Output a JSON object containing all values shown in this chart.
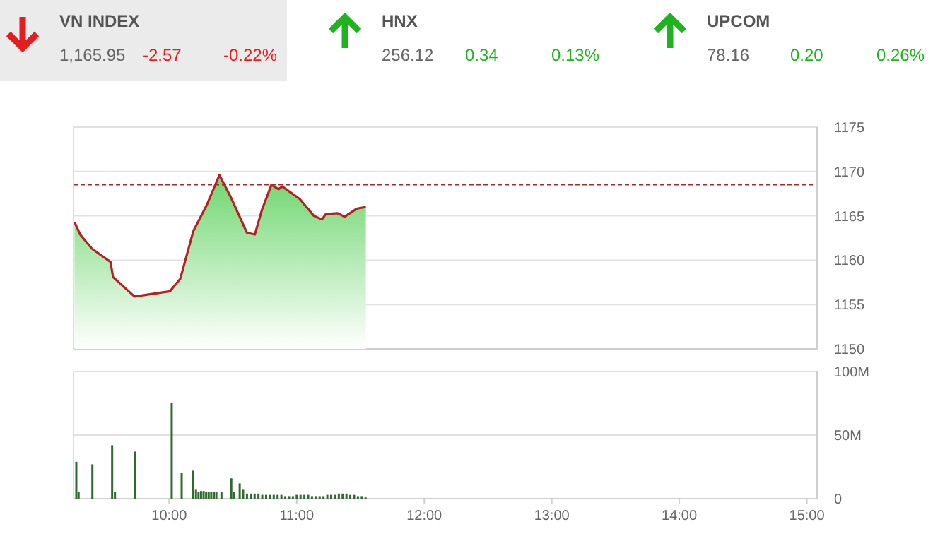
{
  "chart_data": [
    {
      "type": "other",
      "annotations": [
        "VN INDEX",
        "1,165.95",
        "-2.57",
        "-0.22%",
        "HNX",
        "256.12",
        "0.34",
        "0.13%",
        "UPCOM",
        "78.16",
        "0.20",
        "0.26%"
      ]
    },
    {
      "type": "area",
      "x": [
        9.258,
        9.302,
        9.394,
        9.54,
        9.56,
        9.728,
        10.006,
        10.087,
        10.19,
        10.294,
        10.394,
        10.487,
        10.609,
        10.672,
        10.728,
        10.802,
        10.857,
        10.887,
        11.024,
        11.135,
        11.198,
        11.228,
        11.32,
        11.376,
        11.469,
        11.542
      ],
      "series": [
        {
          "color": "#b22222",
          "values": [
            1164.3,
            1162.9,
            1161.3,
            1159.8,
            1158.1,
            1155.9,
            1156.5,
            1157.9,
            1163.3,
            1166.2,
            1169.6,
            1167.0,
            1163.1,
            1162.9,
            1165.7,
            1168.5,
            1168.0,
            1168.3,
            1166.9,
            1165.0,
            1164.6,
            1165.2,
            1165.3,
            1164.9,
            1165.8,
            1166.0
          ]
        }
      ],
      "xlim": [
        9.25,
        15.08
      ],
      "ylim": [
        1150,
        1175
      ],
      "yticks": [
        1150,
        1155,
        1160,
        1165,
        1170,
        1175
      ],
      "grid": "y",
      "tick_labels": "y",
      "ref_lines": [
        {
          "axis": "y",
          "value": 1168.52,
          "color": "#a52a2a",
          "line_style": "dashed"
        }
      ]
    },
    {
      "type": "bar",
      "x": [
        9.272,
        9.29,
        9.398,
        9.553,
        9.575,
        9.731,
        10.02,
        10.098,
        10.187,
        10.21,
        10.23,
        10.25,
        10.27,
        10.29,
        10.31,
        10.33,
        10.35,
        10.37,
        10.41,
        10.487,
        10.51,
        10.553,
        10.58,
        10.61,
        10.64,
        10.67,
        10.7,
        10.73,
        10.76,
        10.79,
        10.82,
        10.85,
        10.88,
        10.91,
        10.94,
        10.97,
        11.0,
        11.03,
        11.06,
        11.09,
        11.12,
        11.15,
        11.18,
        11.21,
        11.24,
        11.27,
        11.3,
        11.33,
        11.36,
        11.39,
        11.42,
        11.45,
        11.48,
        11.51,
        11.54
      ],
      "series": [
        {
          "color": "#2e6b2e",
          "values": [
            29,
            5,
            27,
            42,
            5,
            37,
            75,
            20,
            22,
            7,
            5,
            6,
            6,
            5,
            5,
            5,
            5,
            5,
            5,
            16,
            5,
            12,
            7,
            4,
            4,
            4,
            4,
            3,
            3,
            3,
            3,
            3,
            3,
            2,
            2,
            2,
            3,
            3,
            3,
            3,
            2,
            2,
            2,
            2,
            3,
            3,
            3,
            4,
            4,
            4,
            3,
            3,
            2,
            2,
            1
          ]
        }
      ],
      "xlim": [
        9.25,
        15.08
      ],
      "xticks": [
        {
          "value": 10,
          "label": "10:00"
        },
        {
          "value": 11,
          "label": "11:00"
        },
        {
          "value": 12,
          "label": "12:00"
        },
        {
          "value": 13,
          "label": "13:00"
        },
        {
          "value": 14,
          "label": "14:00"
        },
        {
          "value": 15,
          "label": "15:00"
        }
      ],
      "ylim": [
        0,
        100
      ],
      "yticks": [
        0,
        {
          "value": 50,
          "label": "50M"
        },
        {
          "value": 100,
          "label": "100M"
        }
      ],
      "grid": "y"
    }
  ]
}
